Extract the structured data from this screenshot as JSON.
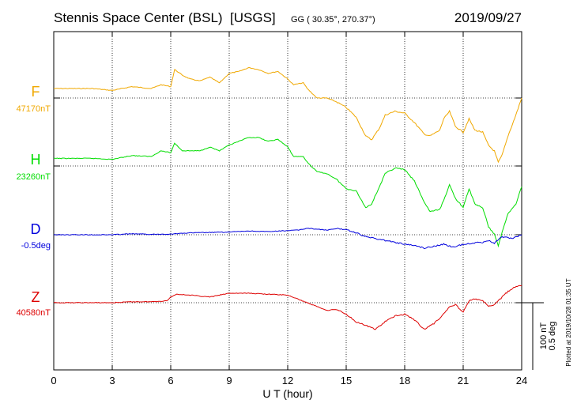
{
  "header": {
    "station": "Stennis Space Center (BSL)  [USGS]",
    "coords": "GG ( 30.35°, 270.37°)",
    "date": "2019/09/27"
  },
  "footnote": "Plotted at 2019/10/28 01:35 UT",
  "scale_bar": {
    "line1": "100 nT",
    "line2": "0.5 deg"
  },
  "chart_data": {
    "type": "line",
    "title": "Stennis Space Center (BSL)  [USGS]",
    "xlabel": "U T (hour)",
    "ylabel": "",
    "xlim": [
      0,
      24
    ],
    "x_ticks": [
      0,
      3,
      6,
      9,
      12,
      15,
      18,
      21,
      24
    ],
    "grid": "dotted",
    "x_grid_lines": [
      3,
      6,
      9,
      12,
      15,
      18,
      21
    ],
    "series": [
      {
        "name": "F",
        "baseline_label": "47170nT",
        "color": "#F0A800",
        "x": [
          0,
          1,
          2,
          3,
          4,
          5,
          5.5,
          6,
          6.2,
          6.6,
          7,
          7.5,
          8,
          8.5,
          9,
          9.5,
          10,
          10.5,
          11,
          11.5,
          12,
          12.3,
          12.8,
          13,
          13.5,
          14,
          14.5,
          15,
          15.5,
          16,
          16.3,
          16.7,
          17,
          17.5,
          18,
          18.5,
          19,
          19.3,
          19.8,
          20,
          20.3,
          20.6,
          21,
          21.3,
          21.6,
          22,
          22.3,
          22.6,
          22.8,
          23,
          23.3,
          23.7,
          24
        ],
        "y": [
          47180,
          47180,
          47180,
          47178,
          47182,
          47180,
          47184,
          47182,
          47200,
          47194,
          47190,
          47188,
          47192,
          47186,
          47196,
          47198,
          47202,
          47200,
          47196,
          47198,
          47190,
          47184,
          47186,
          47180,
          47170,
          47170,
          47166,
          47160,
          47150,
          47130,
          47126,
          47138,
          47152,
          47156,
          47154,
          47144,
          47132,
          47130,
          47136,
          47148,
          47156,
          47140,
          47134,
          47148,
          47136,
          47134,
          47120,
          47114,
          47102,
          47110,
          47130,
          47152,
          47170
        ]
      },
      {
        "name": "H",
        "baseline_label": "23260nT",
        "color": "#00DD00",
        "x": [
          0,
          1,
          2,
          3,
          4,
          5,
          5.5,
          6,
          6.2,
          6.6,
          7,
          7.5,
          8,
          8.5,
          9,
          9.5,
          10,
          10.5,
          11,
          11.5,
          12,
          12.3,
          12.8,
          13,
          13.5,
          14,
          14.5,
          15,
          15.5,
          16,
          16.3,
          16.7,
          17,
          17.5,
          18,
          18.5,
          19,
          19.3,
          19.8,
          20,
          20.3,
          20.6,
          21,
          21.3,
          21.6,
          22,
          22.3,
          22.6,
          22.8,
          23,
          23.3,
          23.7,
          24
        ],
        "y": [
          23268,
          23268,
          23268,
          23267,
          23271,
          23270,
          23276,
          23274,
          23284,
          23276,
          23276,
          23276,
          23280,
          23276,
          23282,
          23286,
          23290,
          23290,
          23286,
          23288,
          23280,
          23270,
          23270,
          23264,
          23254,
          23252,
          23246,
          23236,
          23234,
          23216,
          23220,
          23238,
          23252,
          23258,
          23256,
          23244,
          23222,
          23212,
          23214,
          23224,
          23240,
          23226,
          23216,
          23236,
          23220,
          23216,
          23196,
          23188,
          23176,
          23190,
          23210,
          23220,
          23238
        ]
      },
      {
        "name": "D",
        "baseline_label": "-0.5deg",
        "color": "#0000DD",
        "x": [
          0,
          1,
          2,
          3,
          4,
          5,
          6,
          7,
          8,
          9,
          10,
          11,
          12,
          12.5,
          13,
          13.5,
          14,
          14.5,
          15,
          15.5,
          16,
          16.5,
          17,
          17.5,
          18,
          18.5,
          19,
          19.5,
          20,
          20.5,
          21,
          21.5,
          22,
          22.3,
          22.6,
          23,
          23.5,
          24
        ],
        "y": [
          -0.5,
          -0.5,
          -0.5,
          -0.5,
          -0.495,
          -0.498,
          -0.496,
          -0.49,
          -0.488,
          -0.486,
          -0.48,
          -0.484,
          -0.478,
          -0.476,
          -0.466,
          -0.47,
          -0.476,
          -0.468,
          -0.472,
          -0.49,
          -0.51,
          -0.52,
          -0.53,
          -0.54,
          -0.55,
          -0.556,
          -0.57,
          -0.56,
          -0.55,
          -0.566,
          -0.55,
          -0.544,
          -0.54,
          -0.53,
          -0.544,
          -0.51,
          -0.52,
          -0.5
        ]
      },
      {
        "name": "Z",
        "baseline_label": "40580nT",
        "color": "#DD0000",
        "x": [
          0,
          1,
          2,
          3,
          4,
          5,
          5.8,
          6,
          6.3,
          7,
          8,
          9,
          10,
          11,
          12,
          12.5,
          13,
          13.5,
          14,
          14.5,
          15,
          15.5,
          16,
          16.5,
          17,
          17.5,
          18,
          18.5,
          19,
          19.5,
          20,
          20.3,
          20.6,
          21,
          21.3,
          21.6,
          22,
          22.3,
          22.6,
          23,
          23.3,
          23.6,
          24
        ],
        "y": [
          40580,
          40580,
          40580,
          40580,
          40581,
          40581,
          40582,
          40586,
          40589,
          40588,
          40586,
          40590,
          40590,
          40589,
          40588,
          40584,
          40580,
          40576,
          40572,
          40573,
          40568,
          40560,
          40556,
          40552,
          40560,
          40566,
          40568,
          40562,
          40552,
          40558,
          40568,
          40576,
          40578,
          40570,
          40582,
          40584,
          40582,
          40576,
          40578,
          40586,
          40592,
          40596,
          40598
        ]
      }
    ]
  }
}
